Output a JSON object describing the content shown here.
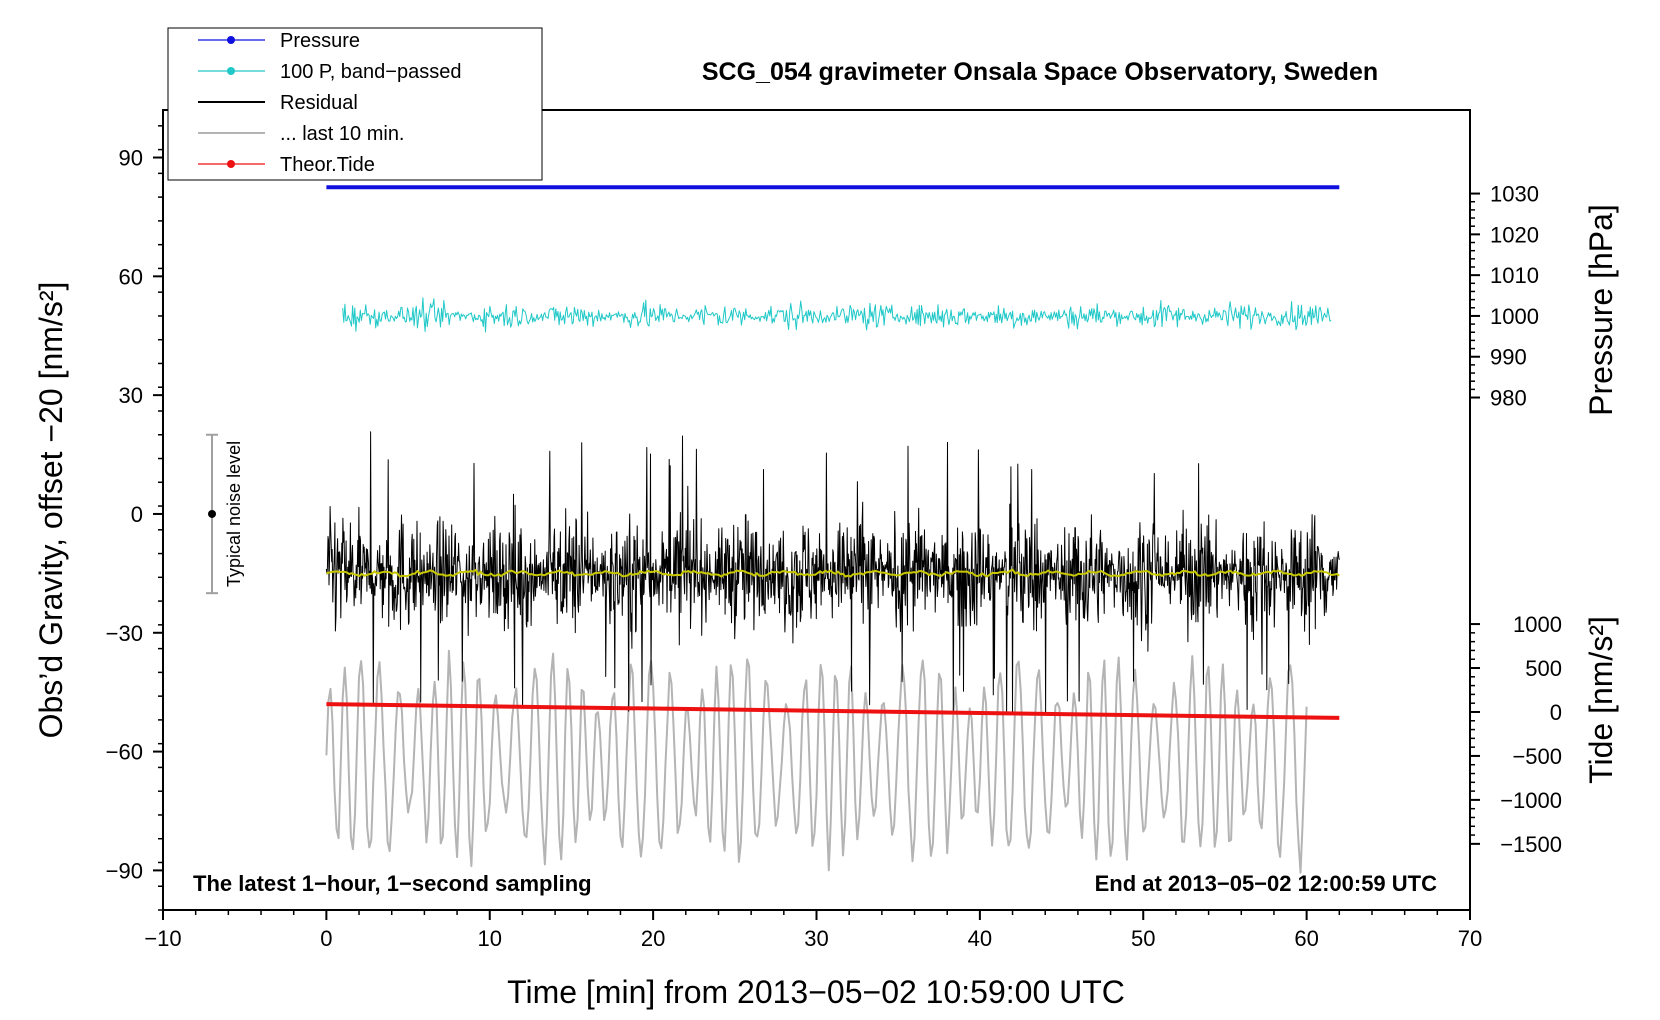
{
  "chart_data": {
    "type": "line",
    "title": "SCG_054 gravimeter Onsala Space Observatory, Sweden",
    "xlabel": "Time [min] from 2013−05−02 10:59:00 UTC",
    "ylabel_left": "Obs’d Gravity, offset −20 [nm/s²]",
    "ylabel_right_top": "Pressure [hPa]",
    "ylabel_right_bottom": "Tide [nm/s²]",
    "xlim": [
      -10,
      70
    ],
    "ylim_left": [
      -100,
      102
    ],
    "x_ticks": [
      -10,
      0,
      10,
      20,
      30,
      40,
      50,
      60,
      70
    ],
    "x_tick_labels": [
      "−10",
      "0",
      "10",
      "20",
      "30",
      "40",
      "50",
      "60",
      "70"
    ],
    "y_left_ticks": [
      90,
      60,
      30,
      0,
      -30,
      -60,
      -90
    ],
    "y_left_tick_labels": [
      "90",
      "60",
      "30",
      "0",
      "−30",
      "−60",
      "−90"
    ],
    "pressure_axis_ticks": [
      1030,
      1020,
      1010,
      1000,
      990,
      980
    ],
    "pressure_axis_labels": [
      "1030",
      "1020",
      "1010",
      "1000",
      "990",
      "980"
    ],
    "tide_axis_ticks": [
      1000,
      500,
      0,
      -500,
      -1000,
      -1500
    ],
    "tide_axis_labels": [
      "1000",
      "500",
      "0",
      "−500",
      "−1000",
      "−1500"
    ],
    "legend": {
      "placement": "top-left",
      "entries": [
        {
          "label": "Pressure",
          "color": "#1010e0",
          "marker": true
        },
        {
          "label": "100 P, band−passed",
          "color": "#20c8c8",
          "marker": true
        },
        {
          "label": "Residual",
          "color": "#000000",
          "marker": false
        },
        {
          "label": "... last 10 min.",
          "color": "#b4b4b4",
          "marker": false
        },
        {
          "label": "Theor.Tide",
          "color": "#ee1111",
          "marker": true
        }
      ]
    },
    "series": [
      {
        "name": "Pressure",
        "color": "#1010e0",
        "x": [
          0,
          62
        ],
        "y": [
          82.5,
          82.5
        ]
      },
      {
        "name": "100 P, band−passed",
        "color": "#20c8c8",
        "x_range": [
          1,
          61.5
        ],
        "center": 50,
        "amplitude": 9
      },
      {
        "name": "Residual",
        "color": "#000000",
        "x_range": [
          0,
          62
        ],
        "center": -15,
        "amplitude": 36
      },
      {
        "name": "... last 10 min.",
        "color": "#b4b4b4",
        "x_range": [
          0,
          60
        ],
        "center": -62,
        "amplitude": 28
      },
      {
        "name": "Theor.Tide",
        "color": "#ee1111",
        "x": [
          0,
          62
        ],
        "y": [
          -48,
          -51.5
        ]
      }
    ],
    "smoothed_residual_color": "#c8c800",
    "noise_level": {
      "label": "Typical noise level",
      "x": -7,
      "y_center": 0,
      "y_range": [
        -20,
        20
      ]
    },
    "annotations": {
      "bottom_left": "The latest 1−hour, 1−second sampling",
      "bottom_right": "End at 2013−05−02 12:00:59 UTC"
    }
  }
}
